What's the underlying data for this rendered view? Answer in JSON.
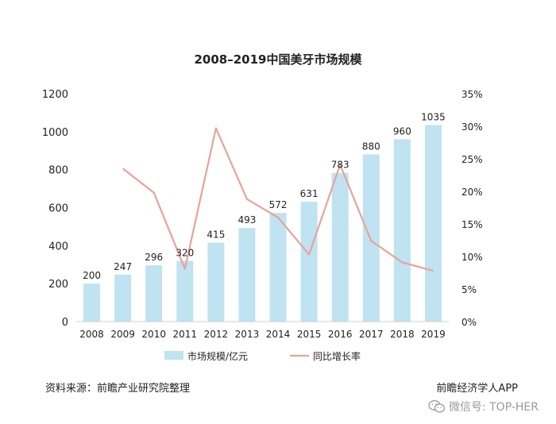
{
  "title": "2008–2019中国美牙市场规模",
  "source_text": "资料来源：前瞻产业研究院整理",
  "publisher": "前瞻经济学人APP",
  "watermark": "微信号: TOP-HER",
  "colors": {
    "bar": "#bfe3f0",
    "line": "#e8a39a",
    "axis": "#cfcfcf",
    "text": "#222222"
  },
  "chart_data": {
    "type": "bar",
    "title": "2008–2019中国美牙市场规模",
    "categories": [
      "2008",
      "2009",
      "2010",
      "2011",
      "2012",
      "2013",
      "2014",
      "2015",
      "2016",
      "2017",
      "2018",
      "2019"
    ],
    "series": [
      {
        "name": "市场规模/亿元",
        "type": "bar",
        "axis": "left",
        "values": [
          200,
          247,
          296,
          320,
          415,
          493,
          572,
          631,
          783,
          880,
          960,
          1035
        ],
        "data_labels": [
          "200",
          "247",
          "296",
          "320",
          "415",
          "493",
          "572",
          "631",
          "783",
          "880",
          "960",
          "1035"
        ]
      },
      {
        "name": "同比增长率",
        "type": "line",
        "axis": "right",
        "values": [
          null,
          23.5,
          19.8,
          8.1,
          29.7,
          18.8,
          16.0,
          10.3,
          24.1,
          12.4,
          9.1,
          7.8
        ]
      }
    ],
    "ylim_left": [
      0,
      1200
    ],
    "yticks_left": [
      "0",
      "200",
      "400",
      "600",
      "800",
      "1000",
      "1200"
    ],
    "ylim_right": [
      0,
      35
    ],
    "yticks_right": [
      "0%",
      "5%",
      "10%",
      "15%",
      "20%",
      "25%",
      "30%",
      "35%"
    ],
    "grid": true,
    "legend_position": "bottom"
  }
}
